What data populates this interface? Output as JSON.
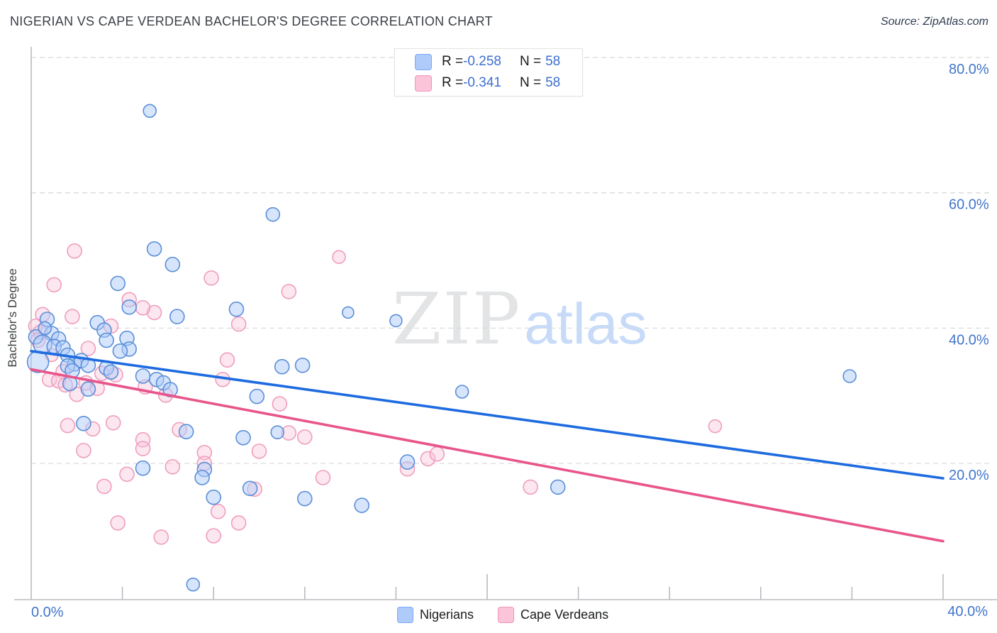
{
  "title": "NIGERIAN VS CAPE VERDEAN BACHELOR'S DEGREE CORRELATION CHART",
  "source": "Source: ZipAtlas.com",
  "y_axis_title": "Bachelor's Degree",
  "watermark": {
    "part1": "ZIP",
    "part2": "atlas"
  },
  "legend_box": {
    "rows": [
      {
        "series": "Nigerians",
        "r_label": "R = ",
        "r_value": "-0.258",
        "n_label": "N = ",
        "n_value": "58"
      },
      {
        "series": "Cape Verdeans",
        "r_label": "R = ",
        "r_value": "-0.341",
        "n_label": "N = ",
        "n_value": "58"
      }
    ]
  },
  "bottom_legend": [
    {
      "label": "Nigerians"
    },
    {
      "label": "Cape Verdeans"
    }
  ],
  "colors": {
    "blue_fill": "rgba(174,203,250,0.5)",
    "blue_stroke": "#5b8ed8",
    "pink_fill": "rgba(249,196,218,0.42)",
    "pink_stroke": "#ef9ebd",
    "blue_trend": "#1e6be0",
    "pink_trend": "#e8558a",
    "grid": "#d9dadc",
    "axis": "#b8bbc0",
    "tick_label": "#4175cc"
  },
  "chart_data": {
    "type": "scatter",
    "title": "NIGERIAN VS CAPE VERDEAN BACHELOR'S DEGREE CORRELATION CHART",
    "xlabel": "",
    "ylabel": "Bachelor's Degree",
    "x_axis": {
      "min": 0,
      "max": 40,
      "label_left": "0.0%",
      "label_right": "40.0%",
      "minor_ticks": [
        4,
        8,
        12,
        16,
        24,
        28,
        32,
        36
      ],
      "major_ticks": [
        20,
        40
      ]
    },
    "y_axis": {
      "min": 0,
      "max": 84,
      "ticks": [
        {
          "value": 80,
          "label": "80.0%"
        },
        {
          "value": 60,
          "label": "60.0%"
        },
        {
          "value": 40,
          "label": "40.0%"
        },
        {
          "value": 20,
          "label": "20.0%"
        }
      ],
      "grid": true
    },
    "legend_position": "bottom",
    "series": [
      {
        "name": "Nigerians",
        "R": -0.258,
        "N": 58,
        "trend": {
          "x": [
            0,
            40
          ],
          "y": [
            36.6,
            17.8
          ]
        },
        "points": [
          [
            5.2,
            72.1,
            9
          ],
          [
            10.6,
            56.8,
            9.5
          ],
          [
            5.4,
            51.7,
            10
          ],
          [
            6.2,
            49.4,
            10
          ],
          [
            3.8,
            46.6,
            10
          ],
          [
            4.3,
            43.1,
            10
          ],
          [
            6.4,
            41.7,
            10
          ],
          [
            9.0,
            42.8,
            10
          ],
          [
            13.9,
            42.3,
            8
          ],
          [
            16.0,
            41.1,
            8.5
          ],
          [
            2.9,
            40.8,
            10
          ],
          [
            3.2,
            39.7,
            10
          ],
          [
            3.3,
            38.2,
            10
          ],
          [
            0.7,
            41.3,
            10
          ],
          [
            0.2,
            38.7,
            10
          ],
          [
            0.9,
            39.2,
            10
          ],
          [
            1.2,
            38.4,
            10
          ],
          [
            0.5,
            37.6,
            13
          ],
          [
            1.0,
            37.3,
            10
          ],
          [
            1.4,
            37.1,
            10
          ],
          [
            0.3,
            35.0,
            15
          ],
          [
            1.6,
            36.0,
            10
          ],
          [
            1.9,
            34.7,
            10
          ],
          [
            2.2,
            35.2,
            10
          ],
          [
            4.2,
            38.5,
            10
          ],
          [
            4.3,
            36.9,
            10
          ],
          [
            3.9,
            36.6,
            10
          ],
          [
            2.5,
            34.5,
            10
          ],
          [
            3.3,
            34.1,
            10
          ],
          [
            3.5,
            33.5,
            10
          ],
          [
            1.6,
            34.4,
            10
          ],
          [
            1.8,
            33.7,
            10
          ],
          [
            1.7,
            31.8,
            10
          ],
          [
            2.5,
            31.0,
            10
          ],
          [
            4.9,
            32.9,
            10
          ],
          [
            5.5,
            32.4,
            10
          ],
          [
            5.8,
            31.9,
            10
          ],
          [
            6.1,
            30.9,
            10
          ],
          [
            9.9,
            29.9,
            10
          ],
          [
            11.0,
            34.3,
            10
          ],
          [
            11.9,
            34.5,
            10
          ],
          [
            18.9,
            30.6,
            9
          ],
          [
            35.9,
            32.9,
            9
          ],
          [
            2.3,
            25.9,
            10
          ],
          [
            6.8,
            24.7,
            10
          ],
          [
            9.3,
            23.8,
            10
          ],
          [
            10.8,
            24.6,
            9
          ],
          [
            16.5,
            20.2,
            10
          ],
          [
            4.9,
            19.3,
            10
          ],
          [
            7.6,
            19.1,
            10
          ],
          [
            7.5,
            17.9,
            10
          ],
          [
            9.6,
            16.3,
            10
          ],
          [
            23.1,
            16.5,
            10
          ],
          [
            8.0,
            15.0,
            10
          ],
          [
            12.0,
            14.8,
            10
          ],
          [
            14.5,
            13.8,
            10
          ],
          [
            7.1,
            2.1,
            9
          ],
          [
            0.6,
            40.0,
            9
          ]
        ]
      },
      {
        "name": "Cape Verdeans",
        "R": -0.341,
        "N": 58,
        "trend": {
          "x": [
            0,
            40
          ],
          "y": [
            33.9,
            8.5
          ]
        },
        "points": [
          [
            1.9,
            51.4,
            10
          ],
          [
            1.0,
            46.4,
            10
          ],
          [
            13.5,
            50.5,
            9
          ],
          [
            7.9,
            47.4,
            10
          ],
          [
            11.3,
            45.4,
            10
          ],
          [
            4.3,
            44.2,
            10
          ],
          [
            5.4,
            42.3,
            10
          ],
          [
            9.1,
            40.6,
            10
          ],
          [
            0.5,
            42.0,
            10
          ],
          [
            1.8,
            41.7,
            10
          ],
          [
            0.2,
            40.3,
            10
          ],
          [
            0.4,
            39.4,
            10
          ],
          [
            3.5,
            40.3,
            10
          ],
          [
            2.5,
            37.0,
            10
          ],
          [
            30.0,
            25.5,
            9
          ],
          [
            1.4,
            33.6,
            10
          ],
          [
            3.1,
            33.3,
            10
          ],
          [
            3.7,
            33.1,
            10
          ],
          [
            0.8,
            32.4,
            10
          ],
          [
            1.2,
            32.2,
            10
          ],
          [
            2.4,
            31.9,
            10
          ],
          [
            2.9,
            31.1,
            10
          ],
          [
            5.0,
            31.3,
            10
          ],
          [
            5.9,
            30.1,
            10
          ],
          [
            8.4,
            32.4,
            10
          ],
          [
            8.6,
            35.3,
            10
          ],
          [
            10.9,
            28.8,
            10
          ],
          [
            1.6,
            25.6,
            10
          ],
          [
            2.7,
            25.1,
            10
          ],
          [
            3.6,
            26.0,
            10
          ],
          [
            6.5,
            25.0,
            10
          ],
          [
            11.3,
            24.5,
            10
          ],
          [
            12.0,
            23.9,
            10
          ],
          [
            4.9,
            23.5,
            10
          ],
          [
            4.9,
            22.2,
            10
          ],
          [
            2.3,
            21.9,
            10
          ],
          [
            10.0,
            21.8,
            10
          ],
          [
            7.6,
            21.6,
            10
          ],
          [
            7.6,
            20.0,
            10
          ],
          [
            6.2,
            19.5,
            10
          ],
          [
            4.2,
            18.4,
            10
          ],
          [
            3.2,
            16.6,
            10
          ],
          [
            9.8,
            16.2,
            10
          ],
          [
            12.8,
            17.9,
            10
          ],
          [
            16.5,
            19.2,
            10
          ],
          [
            17.4,
            20.7,
            10
          ],
          [
            17.8,
            21.4,
            10
          ],
          [
            21.9,
            16.5,
            10
          ],
          [
            8.2,
            12.9,
            10
          ],
          [
            9.1,
            11.2,
            10
          ],
          [
            3.8,
            11.2,
            10
          ],
          [
            5.7,
            9.1,
            10
          ],
          [
            8.0,
            9.3,
            10
          ],
          [
            1.5,
            31.6,
            10
          ],
          [
            0.3,
            38.2,
            10
          ],
          [
            4.9,
            43.0,
            10
          ],
          [
            2.0,
            30.2,
            10
          ],
          [
            0.9,
            36.0,
            9
          ]
        ]
      }
    ]
  }
}
